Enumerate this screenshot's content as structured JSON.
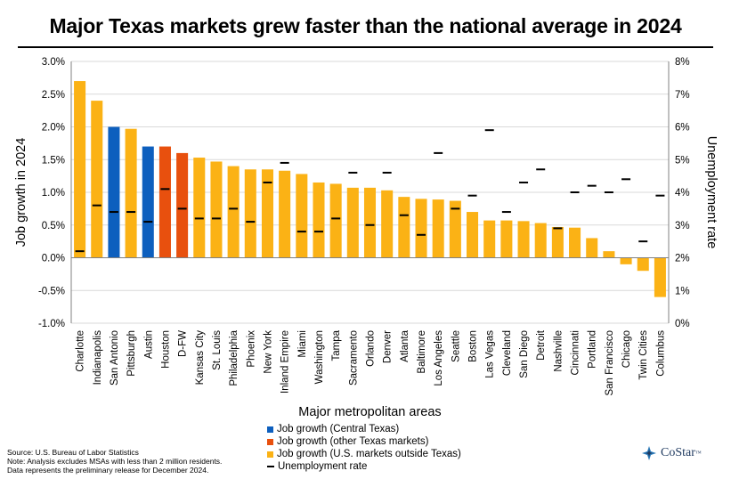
{
  "header": {
    "title": "Major Texas markets grew faster than the national average in 2024"
  },
  "colors": {
    "central_texas": "#0d5fbe",
    "other_texas": "#e8500e",
    "us_outside_texas": "#fbb215",
    "unemployment": "#000000"
  },
  "chart_data": {
    "type": "bar",
    "title": "Major Texas markets grew faster than the national average in 2024",
    "xlabel": "Major metropolitan areas",
    "ylabel": "Job growth in 2024",
    "y2label": "Unemployment rate",
    "ylim": [
      -1.0,
      3.0
    ],
    "y2lim": [
      0,
      8
    ],
    "yticks": [
      "-1.0%",
      "-0.5%",
      "0.0%",
      "0.5%",
      "1.0%",
      "1.5%",
      "2.0%",
      "2.5%",
      "3.0%"
    ],
    "y2ticks": [
      "0%",
      "1%",
      "2%",
      "3%",
      "4%",
      "5%",
      "6%",
      "7%",
      "8%"
    ],
    "categories": [
      "Charlotte",
      "Indianapolis",
      "San Antonio",
      "Pittsburgh",
      "Austin",
      "Houston",
      "D-FW",
      "Kansas City",
      "St. Louis",
      "Philadelphia",
      "Phoenix",
      "New York",
      "Inland Empire",
      "Miami",
      "Washington",
      "Tampa",
      "Sacramento",
      "Orlando",
      "Denver",
      "Atlanta",
      "Baltimore",
      "Los Angeles",
      "Seattle",
      "Boston",
      "Las Vegas",
      "Cleveland",
      "San Diego",
      "Detroit",
      "Nashville",
      "Cincinnati",
      "Portland",
      "San Francisco",
      "Chicago",
      "Twin Cities",
      "Columbus"
    ],
    "groups": [
      "us",
      "us",
      "central",
      "us",
      "central",
      "texas",
      "texas",
      "us",
      "us",
      "us",
      "us",
      "us",
      "us",
      "us",
      "us",
      "us",
      "us",
      "us",
      "us",
      "us",
      "us",
      "us",
      "us",
      "us",
      "us",
      "us",
      "us",
      "us",
      "us",
      "us",
      "us",
      "us",
      "us",
      "us",
      "us"
    ],
    "series": [
      {
        "name": "Job growth in 2024",
        "axis": "left",
        "values": [
          2.7,
          2.4,
          2.0,
          1.97,
          1.7,
          1.7,
          1.6,
          1.53,
          1.47,
          1.4,
          1.35,
          1.35,
          1.33,
          1.28,
          1.15,
          1.13,
          1.07,
          1.07,
          1.03,
          0.93,
          0.9,
          0.89,
          0.87,
          0.7,
          0.57,
          0.57,
          0.56,
          0.53,
          0.47,
          0.46,
          0.3,
          0.1,
          -0.1,
          -0.2,
          -0.6
        ]
      },
      {
        "name": "Unemployment rate",
        "axis": "right",
        "values": [
          2.2,
          3.6,
          3.4,
          3.4,
          3.1,
          4.1,
          3.5,
          3.2,
          3.2,
          3.5,
          3.1,
          4.3,
          4.9,
          2.8,
          2.8,
          3.2,
          4.6,
          3.0,
          4.6,
          3.3,
          2.7,
          5.2,
          3.5,
          3.9,
          5.9,
          3.4,
          4.3,
          4.7,
          2.9,
          4.0,
          4.2,
          4.0,
          4.4,
          2.5,
          3.9
        ]
      }
    ],
    "legend": [
      {
        "label": "Job growth (Central Texas)",
        "color": "#0d5fbe",
        "kind": "bar"
      },
      {
        "label": "Job growth (other Texas markets)",
        "color": "#e8500e",
        "kind": "bar"
      },
      {
        "label": "Job growth (U.S. markets outside Texas)",
        "color": "#fbb215",
        "kind": "bar"
      },
      {
        "label": "Unemployment rate",
        "color": "#000000",
        "kind": "dash"
      }
    ]
  },
  "footer": {
    "source": "Source: U.S. Bureau of Labor Statistics",
    "note": "Note: Analysis excludes MSAs with less than 2 million residents.",
    "data_note": "Data represents the preliminary release for December 2024."
  },
  "logo": {
    "text": "CoStar",
    "trademark": "™"
  }
}
